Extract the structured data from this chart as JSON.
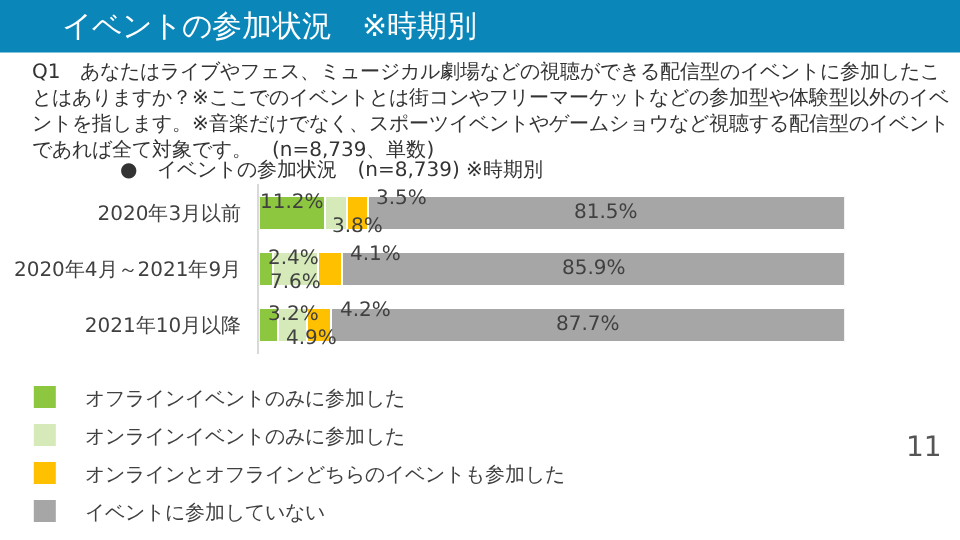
{
  "chart_data": {
    "type": "bar",
    "orientation": "horizontal",
    "stacked": true,
    "title": "イベントの参加状況　※時期別",
    "subtitle": "Q1　あなたはライブやフェス、ミュージカル劇場などの視聴ができる配信型のイベントに参加したことはありますか？※ここでのイベントとは街コンやフリーマーケットなどの参加型や体験型以外のイベントを指します。※音楽だけでなく、スポーツイベントやゲームショウなど視聴する配信型のイベントであれば全て対象です。　(n=8,739、単数)",
    "annotations": [
      "●　イベントの参加状況　(n=8,739) ※時期別",
      "11"
    ],
    "categories": [
      "2020年3月以前",
      "2020年4月～2021年9月",
      "2021年10月以降"
    ],
    "series": [
      {
        "name": "オフラインイベントのみに参加した",
        "color": "#8dc63f",
        "values": [
          11.2,
          2.4,
          3.2
        ],
        "value_labels": [
          "11.2%",
          "2.4%",
          "3.2%"
        ]
      },
      {
        "name": "オンラインイベントのみに参加した",
        "color": "#d5eab8",
        "values": [
          3.8,
          7.6,
          4.9
        ],
        "value_labels": [
          "3.8%",
          "7.6%",
          "4.9%"
        ]
      },
      {
        "name": "オンラインとオフラインどちらのイベントも参加した",
        "color": "#ffc000",
        "values": [
          3.5,
          4.1,
          4.2
        ],
        "value_labels": [
          "3.5%",
          "4.1%",
          "4.2%"
        ]
      },
      {
        "name": "イベントに参加していない",
        "color": "#a6a6a6",
        "values": [
          81.5,
          85.9,
          87.7
        ],
        "value_labels": [
          "81.5%",
          "85.9%",
          "87.7%"
        ]
      }
    ],
    "xlim": [
      0,
      100
    ],
    "tick_labels": "y",
    "legend": "bottom"
  }
}
